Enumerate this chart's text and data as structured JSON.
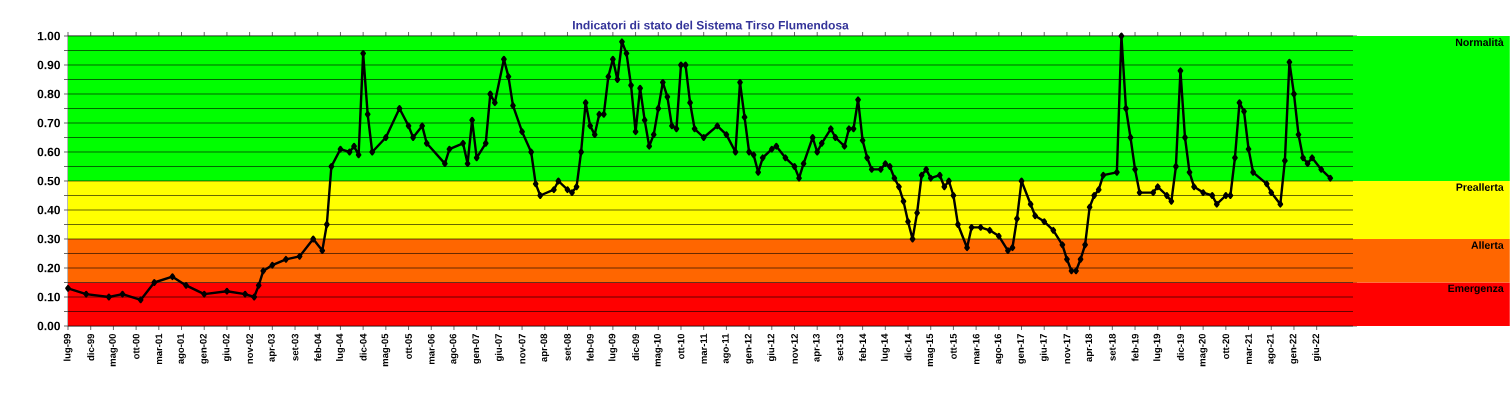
{
  "chart_data": {
    "type": "line",
    "title": "Indicatori di stato del Sistema Tirso Flumendosa",
    "xlim": [
      "1999-07",
      "2023-02"
    ],
    "ylim": [
      0,
      1
    ],
    "xticks": [
      {
        "value": "1999-07",
        "label": "lug-99"
      },
      {
        "value": "1999-12",
        "label": "dic-99"
      },
      {
        "value": "2000-05",
        "label": "mag-00"
      },
      {
        "value": "2000-10",
        "label": "ott-00"
      },
      {
        "value": "2001-03",
        "label": "mar-01"
      },
      {
        "value": "2001-08",
        "label": "ago-01"
      },
      {
        "value": "2002-01",
        "label": "gen-02"
      },
      {
        "value": "2002-06",
        "label": "giu-02"
      },
      {
        "value": "2002-11",
        "label": "nov-02"
      },
      {
        "value": "2003-04",
        "label": "apr-03"
      },
      {
        "value": "2003-09",
        "label": "set-03"
      },
      {
        "value": "2004-02",
        "label": "feb-04"
      },
      {
        "value": "2004-07",
        "label": "lug-04"
      },
      {
        "value": "2004-12",
        "label": "dic-04"
      },
      {
        "value": "2005-05",
        "label": "mag-05"
      },
      {
        "value": "2005-10",
        "label": "ott-05"
      },
      {
        "value": "2006-03",
        "label": "mar-06"
      },
      {
        "value": "2006-08",
        "label": "ago-06"
      },
      {
        "value": "2007-01",
        "label": "gen-07"
      },
      {
        "value": "2007-06",
        "label": "giu-07"
      },
      {
        "value": "2007-11",
        "label": "nov-07"
      },
      {
        "value": "2008-04",
        "label": "apr-08"
      },
      {
        "value": "2008-09",
        "label": "set-08"
      },
      {
        "value": "2009-02",
        "label": "feb-09"
      },
      {
        "value": "2009-07",
        "label": "lug-09"
      },
      {
        "value": "2009-12",
        "label": "dic-09"
      },
      {
        "value": "2010-05",
        "label": "mag-10"
      },
      {
        "value": "2010-10",
        "label": "ott-10"
      },
      {
        "value": "2011-03",
        "label": "mar-11"
      },
      {
        "value": "2011-08",
        "label": "ago-11"
      },
      {
        "value": "2012-01",
        "label": "gen-12"
      },
      {
        "value": "2012-06",
        "label": "giu-12"
      },
      {
        "value": "2012-11",
        "label": "nov-12"
      },
      {
        "value": "2013-04",
        "label": "apr-13"
      },
      {
        "value": "2013-09",
        "label": "set-13"
      },
      {
        "value": "2014-02",
        "label": "feb-14"
      },
      {
        "value": "2014-07",
        "label": "lug-14"
      },
      {
        "value": "2014-12",
        "label": "dic-14"
      },
      {
        "value": "2015-05",
        "label": "mag-15"
      },
      {
        "value": "2015-10",
        "label": "ott-15"
      },
      {
        "value": "2016-03",
        "label": "mar-16"
      },
      {
        "value": "2016-08",
        "label": "ago-16"
      },
      {
        "value": "2017-01",
        "label": "gen-17"
      },
      {
        "value": "2017-06",
        "label": "giu-17"
      },
      {
        "value": "2017-11",
        "label": "nov-17"
      },
      {
        "value": "2018-04",
        "label": "apr-18"
      },
      {
        "value": "2018-09",
        "label": "set-18"
      },
      {
        "value": "2019-02",
        "label": "feb-19"
      },
      {
        "value": "2019-07",
        "label": "lug-19"
      },
      {
        "value": "2019-12",
        "label": "dic-19"
      },
      {
        "value": "2020-05",
        "label": "mag-20"
      },
      {
        "value": "2020-10",
        "label": "ott-20"
      },
      {
        "value": "2021-03",
        "label": "mar-21"
      },
      {
        "value": "2021-08",
        "label": "ago-21"
      },
      {
        "value": "2022-01",
        "label": "gen-22"
      },
      {
        "value": "2022-06",
        "label": "giu-22"
      }
    ],
    "yticks": [
      {
        "value": 0,
        "label": "0.00"
      },
      {
        "value": 0.05,
        "label": null
      },
      {
        "value": 0.1,
        "label": "0.10"
      },
      {
        "value": 0.15,
        "label": null
      },
      {
        "value": 0.2,
        "label": "0.20"
      },
      {
        "value": 0.25,
        "label": null
      },
      {
        "value": 0.3,
        "label": "0.30"
      },
      {
        "value": 0.35,
        "label": null
      },
      {
        "value": 0.4,
        "label": "0.40"
      },
      {
        "value": 0.45,
        "label": null
      },
      {
        "value": 0.5,
        "label": "0.50"
      },
      {
        "value": 0.55,
        "label": null
      },
      {
        "value": 0.6,
        "label": "0.60"
      },
      {
        "value": 0.65,
        "label": null
      },
      {
        "value": 0.7,
        "label": "0.70"
      },
      {
        "value": 0.75,
        "label": null
      },
      {
        "value": 0.8,
        "label": "0.80"
      },
      {
        "value": 0.85,
        "label": null
      },
      {
        "value": 0.9,
        "label": "0.90"
      },
      {
        "value": 0.95,
        "label": null
      },
      {
        "value": 1,
        "label": "1.00"
      }
    ],
    "grid": "y",
    "marker": "diamond",
    "line_style": "solid",
    "bands": [
      {
        "axis": "y",
        "from": 0,
        "to": 0.15,
        "label": "Emergenza",
        "color": "#ff0000"
      },
      {
        "axis": "y",
        "from": 0.15,
        "to": 0.3,
        "label": "Allerta",
        "color": "#ff6600"
      },
      {
        "axis": "y",
        "from": 0.3,
        "to": 0.5,
        "label": "Preallerta",
        "color": "#ffff00"
      },
      {
        "axis": "y",
        "from": 0.5,
        "to": 1,
        "label": "Normalità",
        "color": "#00ff00"
      }
    ],
    "series": [
      {
        "color": "#000000",
        "x": [
          "1999-07",
          "1999-11",
          "2000-04",
          "2000-07",
          "2000-11",
          "2001-02",
          "2001-06",
          "2001-09",
          "2002-01",
          "2002-06",
          "2002-10",
          "2002-12",
          "2003-01",
          "2003-02",
          "2003-04",
          "2003-07",
          "2003-10",
          "2004-01",
          "2004-03",
          "2004-04",
          "2004-05",
          "2004-07",
          "2004-09",
          "2004-10",
          "2004-11",
          "2004-12",
          "2005-01",
          "2005-02",
          "2005-05",
          "2005-08",
          "2005-10",
          "2005-11",
          "2006-01",
          "2006-02",
          "2006-06",
          "2006-07",
          "2006-10",
          "2006-11",
          "2006-12",
          "2007-01",
          "2007-03",
          "2007-04",
          "2007-05",
          "2007-07",
          "2007-08",
          "2007-09",
          "2007-11",
          "2008-01",
          "2008-02",
          "2008-03",
          "2008-06",
          "2008-07",
          "2008-09",
          "2008-10",
          "2008-11",
          "2008-12",
          "2009-01",
          "2009-02",
          "2009-03",
          "2009-04",
          "2009-05",
          "2009-06",
          "2009-07",
          "2009-08",
          "2009-09",
          "2009-10",
          "2009-11",
          "2009-12",
          "2010-01",
          "2010-02",
          "2010-03",
          "2010-04",
          "2010-05",
          "2010-06",
          "2010-07",
          "2010-08",
          "2010-09",
          "2010-10",
          "2010-11",
          "2010-12",
          "2011-01",
          "2011-03",
          "2011-06",
          "2011-08",
          "2011-10",
          "2011-11",
          "2011-12",
          "2012-01",
          "2012-02",
          "2012-03",
          "2012-04",
          "2012-06",
          "2012-07",
          "2012-09",
          "2012-11",
          "2012-12",
          "2013-01",
          "2013-03",
          "2013-04",
          "2013-05",
          "2013-07",
          "2013-08",
          "2013-10",
          "2013-11",
          "2013-12",
          "2014-01",
          "2014-02",
          "2014-03",
          "2014-04",
          "2014-06",
          "2014-07",
          "2014-08",
          "2014-09",
          "2014-10",
          "2014-11",
          "2014-12",
          "2015-01",
          "2015-02",
          "2015-03",
          "2015-04",
          "2015-05",
          "2015-07",
          "2015-08",
          "2015-09",
          "2015-10",
          "2015-11",
          "2016-01",
          "2016-02",
          "2016-04",
          "2016-06",
          "2016-08",
          "2016-10",
          "2016-11",
          "2016-12",
          "2017-01",
          "2017-03",
          "2017-04",
          "2017-06",
          "2017-08",
          "2017-10",
          "2017-11",
          "2017-12",
          "2018-01",
          "2018-02",
          "2018-03",
          "2018-04",
          "2018-05",
          "2018-06",
          "2018-07",
          "2018-10",
          "2018-11",
          "2018-12",
          "2019-01",
          "2019-02",
          "2019-03",
          "2019-06",
          "2019-07",
          "2019-09",
          "2019-10",
          "2019-11",
          "2019-12",
          "2020-01",
          "2020-02",
          "2020-03",
          "2020-05",
          "2020-07",
          "2020-08",
          "2020-10",
          "2020-11",
          "2020-12",
          "2021-01",
          "2021-02",
          "2021-03",
          "2021-04",
          "2021-07",
          "2021-08",
          "2021-10",
          "2021-11",
          "2021-12",
          "2022-01",
          "2022-02",
          "2022-03",
          "2022-04",
          "2022-05",
          "2022-07",
          "2022-09"
        ],
        "values": [
          0.13,
          0.11,
          0.1,
          0.11,
          0.09,
          0.15,
          0.17,
          0.14,
          0.11,
          0.12,
          0.11,
          0.1,
          0.14,
          0.19,
          0.21,
          0.23,
          0.24,
          0.3,
          0.26,
          0.35,
          0.55,
          0.61,
          0.6,
          0.62,
          0.59,
          0.94,
          0.73,
          0.6,
          0.65,
          0.75,
          0.69,
          0.65,
          0.69,
          0.63,
          0.56,
          0.61,
          0.63,
          0.56,
          0.71,
          0.58,
          0.63,
          0.8,
          0.77,
          0.92,
          0.86,
          0.76,
          0.67,
          0.6,
          0.49,
          0.45,
          0.47,
          0.5,
          0.47,
          0.46,
          0.48,
          0.6,
          0.77,
          0.69,
          0.66,
          0.73,
          0.73,
          0.86,
          0.92,
          0.85,
          0.98,
          0.94,
          0.83,
          0.67,
          0.82,
          0.71,
          0.62,
          0.66,
          0.75,
          0.84,
          0.79,
          0.69,
          0.68,
          0.9,
          0.9,
          0.77,
          0.68,
          0.65,
          0.69,
          0.66,
          0.6,
          0.84,
          0.72,
          0.6,
          0.59,
          0.53,
          0.58,
          0.61,
          0.62,
          0.58,
          0.55,
          0.51,
          0.56,
          0.65,
          0.6,
          0.63,
          0.68,
          0.65,
          0.62,
          0.68,
          0.68,
          0.78,
          0.64,
          0.58,
          0.54,
          0.54,
          0.56,
          0.55,
          0.51,
          0.48,
          0.43,
          0.36,
          0.3,
          0.39,
          0.52,
          0.54,
          0.51,
          0.52,
          0.48,
          0.5,
          0.45,
          0.35,
          0.27,
          0.34,
          0.34,
          0.33,
          0.31,
          0.26,
          0.27,
          0.37,
          0.5,
          0.42,
          0.38,
          0.36,
          0.33,
          0.28,
          0.23,
          0.19,
          0.19,
          0.23,
          0.28,
          0.41,
          0.45,
          0.47,
          0.52,
          0.53,
          1.0,
          0.75,
          0.65,
          0.54,
          0.46,
          0.46,
          0.48,
          0.45,
          0.43,
          0.55,
          0.88,
          0.65,
          0.53,
          0.48,
          0.46,
          0.45,
          0.42,
          0.45,
          0.45,
          0.58,
          0.77,
          0.74,
          0.61,
          0.53,
          0.49,
          0.46,
          0.42,
          0.57,
          0.91,
          0.8,
          0.66,
          0.58,
          0.56,
          0.58,
          0.54,
          0.51
        ]
      }
    ]
  }
}
